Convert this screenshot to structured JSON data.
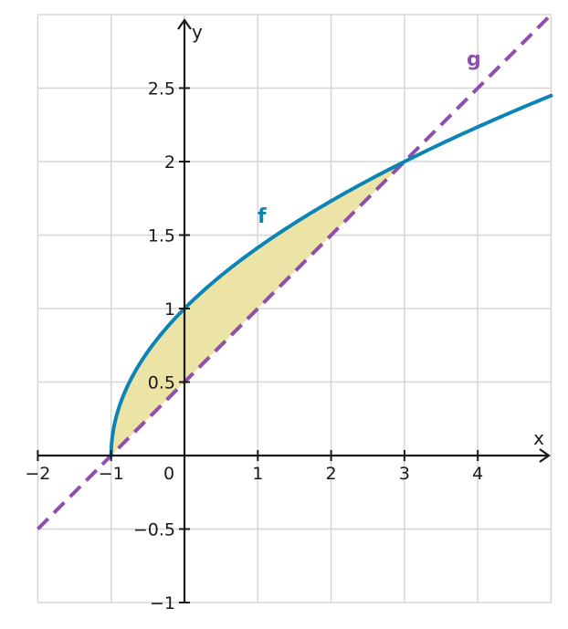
{
  "chart_data": {
    "type": "line",
    "title": "",
    "xlabel": "x",
    "ylabel": "y",
    "xlim": [
      -2,
      5
    ],
    "ylim": [
      -1,
      3
    ],
    "grid": true,
    "x_ticks": [
      {
        "value": -2,
        "label": "−2"
      },
      {
        "value": -1,
        "label": "−1"
      },
      {
        "value": 0,
        "label": "0"
      },
      {
        "value": 1,
        "label": "1"
      },
      {
        "value": 2,
        "label": "2"
      },
      {
        "value": 3,
        "label": "3"
      },
      {
        "value": 4,
        "label": "4"
      }
    ],
    "y_ticks": [
      {
        "value": -1,
        "label": "−1"
      },
      {
        "value": -0.5,
        "label": "−0.5"
      },
      {
        "value": 0.5,
        "label": "0.5"
      },
      {
        "value": 1,
        "label": "1"
      },
      {
        "value": 1.5,
        "label": "1.5"
      },
      {
        "value": 2,
        "label": "2"
      },
      {
        "value": 2.5,
        "label": "2.5"
      }
    ],
    "series": [
      {
        "name": "f",
        "color": "#0a85b5",
        "style": "solid",
        "x": [
          -1,
          -0.75,
          -0.5,
          0,
          0.5,
          1,
          1.5,
          2,
          2.5,
          3,
          3.5,
          4,
          4.5,
          5
        ],
        "y": [
          0,
          0.5,
          0.707,
          1,
          1.225,
          1.414,
          1.581,
          1.732,
          1.871,
          2,
          2.121,
          2.236,
          2.345,
          2.449
        ]
      },
      {
        "name": "g",
        "color": "#8e4fb0",
        "style": "dashed",
        "x": [
          -2,
          -1,
          0,
          1,
          2,
          3,
          4,
          5
        ],
        "y": [
          -0.5,
          0,
          0.5,
          1,
          1.5,
          2,
          2.5,
          3
        ]
      }
    ],
    "shaded_region": {
      "between": [
        "f",
        "g"
      ],
      "x_range": [
        -1,
        3
      ],
      "color": "#ece3a6"
    }
  }
}
